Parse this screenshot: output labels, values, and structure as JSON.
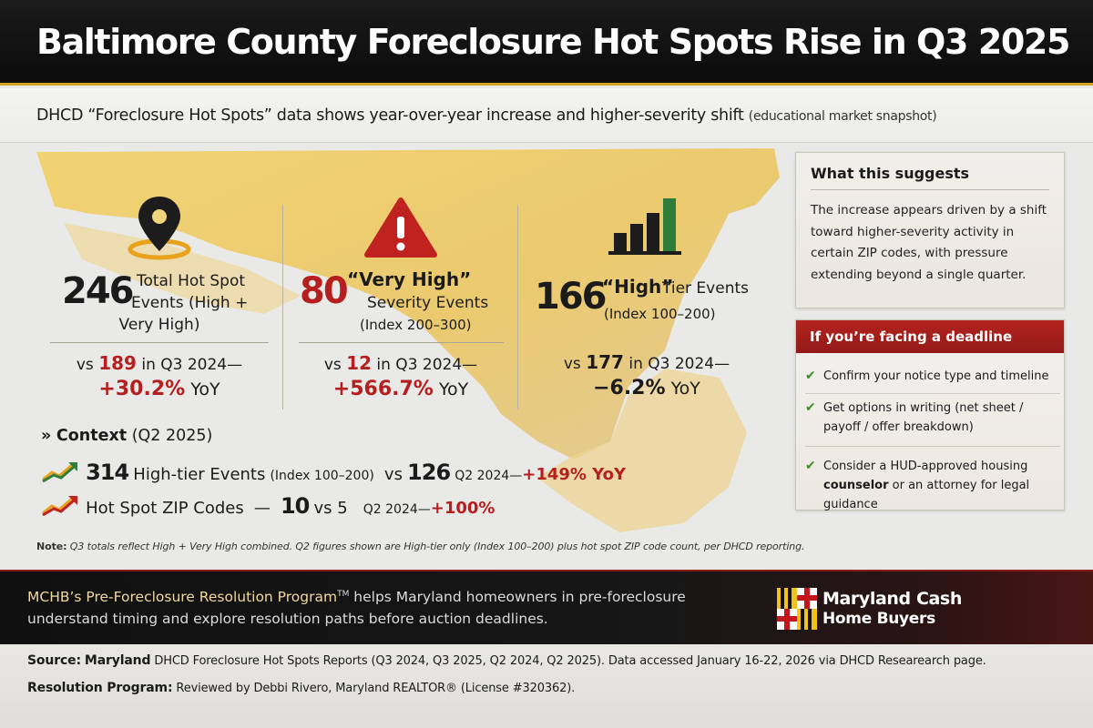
{
  "header": {
    "title": "Baltimore County Foreclosure Hot Spots Rise in Q3 2025"
  },
  "subtitle": {
    "lead": "DHCD “Foreclosure Hot Spots” data shows year-over-year increase and higher-severity shift",
    "tail": "(educational market snapshot)"
  },
  "stats": [
    {
      "icon": "map-pin-icon",
      "value": "246",
      "label_line1": "Total Hot Spot",
      "label_line2": "Events (High +",
      "label_line3": "Very High)",
      "compare_prefix": "vs",
      "compare_value": "189",
      "compare_suffix": "in Q3 2024—",
      "yoy_value": "+30.2%",
      "yoy_suffix": "YoY"
    },
    {
      "icon": "warning-triangle-icon",
      "value": "80",
      "label_line1": "“Very High”",
      "label_line2": "Severity Events",
      "label_line3": "(Index 200–300)",
      "compare_prefix": "vs",
      "compare_value": "12",
      "compare_suffix": "in Q3 2024—",
      "yoy_value": "+566.7%",
      "yoy_suffix": "YoY"
    },
    {
      "icon": "bar-chart-icon",
      "value": "166",
      "label_line1": "“High”",
      "label_line2": "Tier Events",
      "label_line3": "(Index 100–200)",
      "compare_prefix": "vs",
      "compare_value": "177",
      "compare_suffix": "in Q3 2024—",
      "yoy_value": "−6.2%",
      "yoy_suffix": "YoY"
    }
  ],
  "context": {
    "chevron": "»",
    "title": "Context",
    "period": "(Q2 2025)",
    "line1": {
      "icon": "trend-up-green-icon",
      "value": "314",
      "label": "High-tier Events",
      "index": "(Index 100–200)",
      "vs": "vs",
      "prior": "126",
      "prior_period": "Q2 2024—",
      "change": "+149% YoY"
    },
    "line2": {
      "icon": "trend-up-orange-icon",
      "label": "Hot Spot ZIP Codes",
      "dash": "—",
      "value": "10",
      "vs": "vs 5",
      "prior_period": "Q2 2024—",
      "change": "+100%"
    }
  },
  "note": {
    "label": "Note:",
    "text": "Q3 totals reflect High + Very High combined. Q2 figures shown are High-tier only (Index 100–200) plus hot spot ZIP code count, per DHCD reporting."
  },
  "suggest_panel": {
    "title": "What this suggests",
    "body": "The increase appears driven by a shift toward higher-severity activity in certain ZIP codes, with pressure extending beyond a single quarter."
  },
  "deadline_panel": {
    "title": "If you’re facing a deadline",
    "check_icon": "check-icon",
    "item1": "Confirm your notice type and timeline",
    "item2": "Get options in writing (net sheet / payoff / offer breakdown)",
    "item3_pre": "Consider a HUD-approved housing",
    "item3_bold": "counselor",
    "item3_post": "or an attorney for legal guidance"
  },
  "program": {
    "name": "MCHB’s Pre-Foreclosure Resolution Program",
    "tm": "TM",
    "text": "helps Maryland homeowners in pre-foreclosure understand timing and explore resolution paths before auction deadlines."
  },
  "logo": {
    "line1": "Maryland Cash",
    "line2": "Home Buyers",
    "icon": "maryland-flag-icon"
  },
  "footer": {
    "source_label": "Source:",
    "source_bold": "Maryland",
    "source_text": "DHCD Foreclosure Hot Spots Reports (Q3 2024, Q3 2025, Q2 2024, Q2 2025). Data accessed January 16-22, 2026 via DHCD Researearch page.",
    "review_label": "Resolution Program:",
    "review_text": "Reviewed by Debbi Rivero, Maryland REALTOR® (License #320362)."
  },
  "colors": {
    "accent_red": "#b51f1f",
    "gold": "#d2a423",
    "green": "#2f7d3a",
    "header_bg": "#0b0b0b"
  }
}
